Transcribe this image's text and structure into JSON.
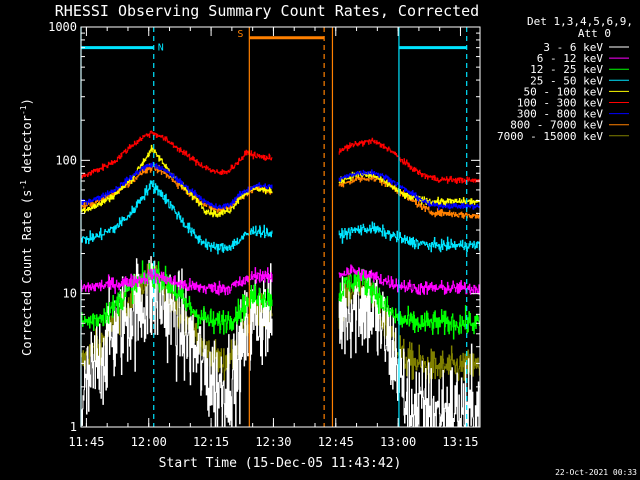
{
  "chart_data": {
    "type": "line",
    "title": "RHESSI Observing Summary Count Rates, Corrected",
    "xlabel": "Start Time (15-Dec-05 11:43:42)",
    "ylabel_main": "Corrected Count Rate (s",
    "ylabel_sup1": "-1",
    "ylabel_mid": " detector",
    "ylabel_sup2": "-1",
    "ylabel_end": ")",
    "y_scale": "log",
    "ylim": [
      1,
      1000
    ],
    "xlim_minutes": [
      0,
      96
    ],
    "x_ticks": [
      {
        "label": "11:45",
        "m": 1.3
      },
      {
        "label": "12:00",
        "m": 16.3
      },
      {
        "label": "12:15",
        "m": 31.3
      },
      {
        "label": "12:30",
        "m": 46.3
      },
      {
        "label": "12:45",
        "m": 61.3
      },
      {
        "label": "13:00",
        "m": 76.3
      },
      {
        "label": "13:15",
        "m": 91.3
      }
    ],
    "y_ticks": [
      {
        "label": "1",
        "v": 1
      },
      {
        "label": "10",
        "v": 10
      },
      {
        "label": "100",
        "v": 100
      },
      {
        "label": "1000",
        "v": 1000
      }
    ],
    "legend_title_1": "Det 1,3,4,5,6,9,",
    "legend_title_2": "Att 0",
    "legend_position": "right",
    "footer_date": "22-Oct-2021 00:33",
    "data_gap_minutes": [
      46,
      62
    ],
    "vertical_markers": [
      {
        "m": 0.0,
        "color": "#00e5ff",
        "style": "solid"
      },
      {
        "m": 17.5,
        "color": "#00e5ff",
        "style": "dashed"
      },
      {
        "m": 40.5,
        "color": "#ff8000",
        "style": "solid"
      },
      {
        "m": 58.5,
        "color": "#ff8000",
        "style": "dashed"
      },
      {
        "m": 60.5,
        "color": "#ff8000",
        "style": "solid"
      },
      {
        "m": 76.5,
        "color": "#00e5ff",
        "style": "solid"
      },
      {
        "m": 92.8,
        "color": "#00e5ff",
        "style": "dashed"
      }
    ],
    "flag_segments": [
      {
        "label": "N",
        "color": "#00e5ff",
        "y": 700,
        "from": 0.0,
        "to": 17.5
      },
      {
        "label": "S",
        "color": "#ff8000",
        "y": 830,
        "from": 40.5,
        "to": 58.5
      },
      {
        "label": "",
        "color": "#00e5ff",
        "y": 700,
        "from": 76.5,
        "to": 92.8
      }
    ],
    "series": [
      {
        "name": "3 - 6 keV",
        "color": "#ffffff",
        "noise": 0.75,
        "points": [
          [
            0,
            1.5
          ],
          [
            3,
            2.5
          ],
          [
            6,
            4
          ],
          [
            9,
            5.5
          ],
          [
            12,
            7
          ],
          [
            15,
            8.5
          ],
          [
            17,
            9.5
          ],
          [
            19,
            9
          ],
          [
            22,
            7
          ],
          [
            25,
            5
          ],
          [
            28,
            3.5
          ],
          [
            31,
            2.3
          ],
          [
            34,
            2
          ],
          [
            37,
            2.5
          ],
          [
            40,
            5
          ],
          [
            42,
            7
          ],
          [
            43,
            7
          ],
          [
            46,
            6
          ],
          [
            62,
            7
          ],
          [
            64,
            8
          ],
          [
            67,
            8.5
          ],
          [
            70,
            7.5
          ],
          [
            73,
            5
          ],
          [
            76,
            3
          ],
          [
            78,
            1.6
          ],
          [
            82,
            1.3
          ],
          [
            88,
            1.3
          ],
          [
            96,
            1.3
          ]
        ]
      },
      {
        "name": "6 - 12 keV",
        "color": "#ff00ff",
        "noise": 0.1,
        "points": [
          [
            0,
            11
          ],
          [
            5,
            11.5
          ],
          [
            10,
            12
          ],
          [
            15,
            13
          ],
          [
            17,
            14
          ],
          [
            20,
            13
          ],
          [
            25,
            11.5
          ],
          [
            30,
            11
          ],
          [
            35,
            11
          ],
          [
            40,
            12.5
          ],
          [
            42,
            14
          ],
          [
            46,
            13
          ],
          [
            62,
            14
          ],
          [
            65,
            15
          ],
          [
            70,
            13.5
          ],
          [
            75,
            12
          ],
          [
            80,
            11
          ],
          [
            88,
            11
          ],
          [
            96,
            11
          ]
        ]
      },
      {
        "name": "12 - 25 keV",
        "color": "#00ff00",
        "noise": 0.18,
        "points": [
          [
            0,
            6
          ],
          [
            4,
            6.5
          ],
          [
            8,
            8
          ],
          [
            12,
            11
          ],
          [
            15,
            13
          ],
          [
            17,
            14
          ],
          [
            19,
            13.5
          ],
          [
            22,
            11
          ],
          [
            25,
            8.5
          ],
          [
            28,
            7
          ],
          [
            32,
            6
          ],
          [
            36,
            6.5
          ],
          [
            40,
            8.5
          ],
          [
            42,
            10
          ],
          [
            46,
            9
          ],
          [
            62,
            10
          ],
          [
            64,
            12
          ],
          [
            67,
            13
          ],
          [
            70,
            11
          ],
          [
            73,
            8
          ],
          [
            76,
            6.5
          ],
          [
            80,
            6
          ],
          [
            88,
            6
          ],
          [
            96,
            6
          ]
        ]
      },
      {
        "name": "25 - 50 keV",
        "color": "#00e5ff",
        "noise": 0.08,
        "points": [
          [
            0,
            25
          ],
          [
            4,
            27
          ],
          [
            8,
            31
          ],
          [
            12,
            40
          ],
          [
            15,
            55
          ],
          [
            17,
            66
          ],
          [
            19,
            58
          ],
          [
            22,
            44
          ],
          [
            25,
            33
          ],
          [
            28,
            26
          ],
          [
            32,
            22
          ],
          [
            35,
            22
          ],
          [
            38,
            25
          ],
          [
            40,
            28
          ],
          [
            42,
            30
          ],
          [
            46,
            28
          ],
          [
            62,
            27
          ],
          [
            66,
            30
          ],
          [
            70,
            31
          ],
          [
            74,
            28
          ],
          [
            78,
            25
          ],
          [
            84,
            23
          ],
          [
            96,
            23
          ]
        ]
      },
      {
        "name": "50 - 100 keV",
        "color": "#ffff00",
        "noise": 0.05,
        "points": [
          [
            0,
            42
          ],
          [
            4,
            46
          ],
          [
            8,
            55
          ],
          [
            12,
            72
          ],
          [
            15,
            98
          ],
          [
            17,
            122
          ],
          [
            19,
            102
          ],
          [
            22,
            77
          ],
          [
            25,
            61
          ],
          [
            28,
            50
          ],
          [
            30,
            42
          ],
          [
            33,
            39
          ],
          [
            36,
            43
          ],
          [
            38,
            52
          ],
          [
            40,
            58
          ],
          [
            42,
            62
          ],
          [
            46,
            58
          ],
          [
            62,
            70
          ],
          [
            66,
            78
          ],
          [
            70,
            78
          ],
          [
            74,
            66
          ],
          [
            78,
            54
          ],
          [
            84,
            49
          ],
          [
            96,
            49
          ]
        ]
      },
      {
        "name": "100 - 300 keV",
        "color": "#ff0000",
        "noise": 0.045,
        "points": [
          [
            0,
            75
          ],
          [
            4,
            85
          ],
          [
            8,
            98
          ],
          [
            12,
            128
          ],
          [
            15,
            150
          ],
          [
            17,
            162
          ],
          [
            19,
            152
          ],
          [
            22,
            132
          ],
          [
            25,
            112
          ],
          [
            28,
            96
          ],
          [
            31,
            85
          ],
          [
            33,
            80
          ],
          [
            35,
            82
          ],
          [
            37,
            92
          ],
          [
            40,
            115
          ],
          [
            42,
            108
          ],
          [
            46,
            103
          ],
          [
            62,
            118
          ],
          [
            66,
            132
          ],
          [
            70,
            140
          ],
          [
            74,
            122
          ],
          [
            78,
            95
          ],
          [
            82,
            78
          ],
          [
            86,
            72
          ],
          [
            96,
            70
          ]
        ]
      },
      {
        "name": "300 - 800 keV",
        "color": "#0000ff",
        "noise": 0.04,
        "points": [
          [
            0,
            48
          ],
          [
            4,
            52
          ],
          [
            8,
            60
          ],
          [
            12,
            75
          ],
          [
            15,
            88
          ],
          [
            17,
            93
          ],
          [
            19,
            88
          ],
          [
            22,
            77
          ],
          [
            25,
            64
          ],
          [
            28,
            55
          ],
          [
            30,
            48
          ],
          [
            33,
            44
          ],
          [
            36,
            47
          ],
          [
            38,
            55
          ],
          [
            40,
            60
          ],
          [
            42,
            65
          ],
          [
            46,
            63
          ],
          [
            62,
            72
          ],
          [
            66,
            80
          ],
          [
            70,
            82
          ],
          [
            74,
            73
          ],
          [
            78,
            60
          ],
          [
            84,
            46
          ],
          [
            96,
            45
          ]
        ]
      },
      {
        "name": "800 - 7000 keV",
        "color": "#ff8000",
        "noise": 0.05,
        "points": [
          [
            0,
            45
          ],
          [
            4,
            49
          ],
          [
            8,
            57
          ],
          [
            12,
            70
          ],
          [
            15,
            83
          ],
          [
            17,
            88
          ],
          [
            19,
            84
          ],
          [
            22,
            72
          ],
          [
            25,
            60
          ],
          [
            28,
            51
          ],
          [
            30,
            46
          ],
          [
            33,
            42
          ],
          [
            36,
            45
          ],
          [
            38,
            52
          ],
          [
            40,
            57
          ],
          [
            42,
            62
          ],
          [
            46,
            58
          ],
          [
            62,
            64
          ],
          [
            66,
            72
          ],
          [
            70,
            74
          ],
          [
            74,
            66
          ],
          [
            78,
            54
          ],
          [
            84,
            41
          ],
          [
            96,
            38
          ]
        ]
      },
      {
        "name": "7000 - 15000 keV",
        "color": "#808000",
        "noise": 0.25,
        "points": [
          [
            0,
            3
          ],
          [
            4,
            4
          ],
          [
            8,
            6
          ],
          [
            12,
            9
          ],
          [
            15,
            12
          ],
          [
            17,
            13
          ],
          [
            19,
            12
          ],
          [
            22,
            9
          ],
          [
            25,
            6.5
          ],
          [
            28,
            4.5
          ],
          [
            31,
            3.5
          ],
          [
            34,
            3
          ],
          [
            37,
            3.5
          ],
          [
            40,
            6
          ],
          [
            42,
            7.5
          ],
          [
            46,
            7
          ],
          [
            62,
            8
          ],
          [
            64,
            10
          ],
          [
            67,
            11
          ],
          [
            70,
            9
          ],
          [
            73,
            6
          ],
          [
            76,
            4.2
          ],
          [
            78,
            3.2
          ],
          [
            84,
            2.8
          ],
          [
            96,
            2.8
          ]
        ]
      }
    ]
  }
}
